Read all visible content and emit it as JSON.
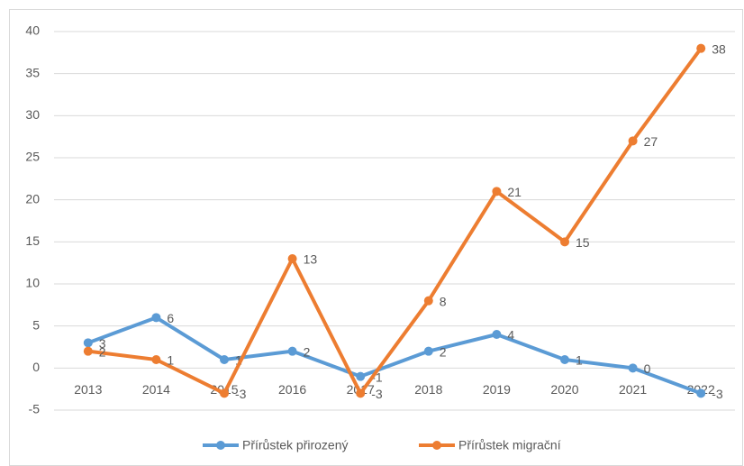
{
  "chart_data": {
    "type": "line",
    "categories": [
      "2013",
      "2014",
      "2015",
      "2016",
      "2017",
      "2018",
      "2019",
      "2020",
      "2021",
      "2022"
    ],
    "series": [
      {
        "name": "Přírůstek přirozený",
        "color": "#5b9bd5",
        "values": [
          3,
          6,
          1,
          2,
          -1,
          2,
          4,
          1,
          0,
          -3
        ]
      },
      {
        "name": "Přírůstek migrační",
        "color": "#ed7d31",
        "values": [
          2,
          1,
          -3,
          13,
          -3,
          8,
          21,
          15,
          27,
          38
        ]
      }
    ],
    "ylim": [
      -5,
      40
    ],
    "yticks": [
      -5,
      0,
      5,
      10,
      15,
      20,
      25,
      30,
      35,
      40
    ],
    "grid": true,
    "legend": "bottom"
  }
}
